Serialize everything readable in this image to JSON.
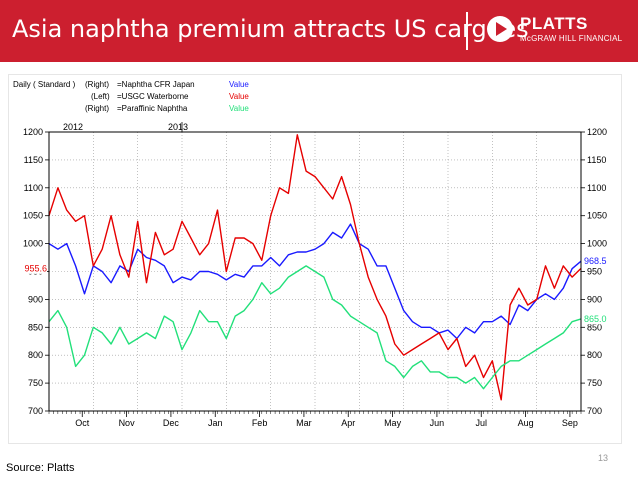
{
  "slide": {
    "title": "Asia naphtha premium attracts US cargoes",
    "source": "Source: Platts",
    "page_number": "13",
    "brand_color": "#cc1f2f"
  },
  "logo": {
    "name": "PLATTS",
    "subtitle": "McGRAW HILL FINANCIAL",
    "icon": "play-triangle-icon"
  },
  "chart_data": {
    "type": "line",
    "frequency_label": "Daily ( Standard )",
    "legend": [
      {
        "axis": "(Right)",
        "label": "=Naphtha CFR Japan",
        "value_label": "Value",
        "color": "#1a1aff"
      },
      {
        "axis": "(Left)",
        "label": "=USGC Waterborne",
        "value_label": "Value",
        "color": "#e60000"
      },
      {
        "axis": "(Right)",
        "label": "=Paraffinic Naphtha",
        "value_label": "Value",
        "color": "#22e07a"
      }
    ],
    "ylim": [
      700,
      1200
    ],
    "yticks": [
      "700",
      "750",
      "800",
      "850",
      "900",
      "950",
      "1000",
      "1050",
      "1100",
      "1150",
      "1200"
    ],
    "months": [
      "Oct",
      "Nov",
      "Dec",
      "Jan",
      "Feb",
      "Mar",
      "Apr",
      "May",
      "Jun",
      "Jul",
      "Aug",
      "Sep"
    ],
    "years": [
      "2012",
      "2013"
    ],
    "grid": true,
    "end_labels": {
      "left": "955.6",
      "right_blue": "968.5",
      "right_green": "865.0"
    },
    "x_index_range": [
      0,
      60
    ],
    "series": [
      {
        "name": "Naphtha CFR Japan",
        "color": "#1a1aff",
        "values": [
          1000,
          990,
          1000,
          960,
          910,
          960,
          950,
          930,
          960,
          950,
          990,
          975,
          970,
          960,
          930,
          940,
          935,
          950,
          950,
          945,
          935,
          945,
          940,
          960,
          960,
          975,
          960,
          980,
          985,
          985,
          990,
          1000,
          1020,
          1010,
          1035,
          1000,
          990,
          960,
          960,
          920,
          880,
          860,
          850,
          850,
          840,
          845,
          830,
          850,
          840,
          860,
          860,
          870,
          855,
          890,
          880,
          900,
          910,
          900,
          920,
          955,
          968.5
        ]
      },
      {
        "name": "USGC Waterborne",
        "color": "#e60000",
        "values": [
          1050,
          1100,
          1060,
          1040,
          1050,
          960,
          990,
          1050,
          980,
          940,
          1040,
          930,
          1020,
          980,
          990,
          1040,
          1010,
          980,
          1000,
          1060,
          950,
          1010,
          1010,
          1000,
          970,
          1050,
          1100,
          1090,
          1195,
          1130,
          1120,
          1100,
          1080,
          1120,
          1070,
          1000,
          940,
          900,
          870,
          820,
          800,
          810,
          820,
          830,
          840,
          810,
          830,
          780,
          800,
          760,
          790,
          720,
          890,
          920,
          890,
          900,
          960,
          920,
          960,
          940,
          955.6
        ]
      },
      {
        "name": "Paraffinic Naphtha",
        "color": "#22e07a",
        "values": [
          860,
          880,
          850,
          780,
          800,
          850,
          840,
          820,
          850,
          820,
          830,
          840,
          830,
          870,
          860,
          810,
          840,
          880,
          860,
          860,
          830,
          870,
          880,
          900,
          930,
          910,
          920,
          940,
          950,
          960,
          950,
          940,
          900,
          890,
          870,
          860,
          850,
          840,
          790,
          780,
          760,
          780,
          790,
          770,
          770,
          760,
          760,
          750,
          760,
          740,
          760,
          780,
          790,
          790,
          800,
          810,
          820,
          830,
          840,
          860,
          865
        ]
      }
    ]
  }
}
